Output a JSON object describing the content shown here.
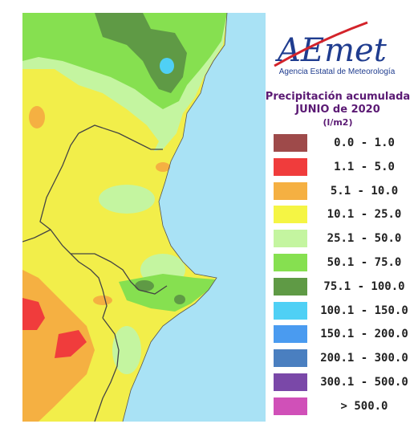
{
  "logo": {
    "wordmark": "AEmet",
    "subtitle": "Agencia Estatal de Meteorología"
  },
  "title": {
    "line1": "Precipitación acumulada",
    "line2": "JUNIO de 2020",
    "units": "(l/m2)"
  },
  "legend": [
    {
      "label": "0.0 - 1.0",
      "color": "#9e4a4a"
    },
    {
      "label": "1.1 - 5.0",
      "color": "#f03c3c"
    },
    {
      "label": "5.1 - 10.0",
      "color": "#f5b042"
    },
    {
      "label": "10.1 - 25.0",
      "color": "#f5f544"
    },
    {
      "label": "25.1 - 50.0",
      "color": "#c4f5a0"
    },
    {
      "label": "50.1 - 75.0",
      "color": "#86e050"
    },
    {
      "label": "75.1 - 100.0",
      "color": "#5f9a45"
    },
    {
      "label": "100.1 - 150.0",
      "color": "#4fd0f5"
    },
    {
      "label": "150.1 - 200.0",
      "color": "#4a9bf0"
    },
    {
      "label": "200.1 - 300.0",
      "color": "#4a7fc0"
    },
    {
      "label": "300.1 - 500.0",
      "color": "#7a48a8"
    },
    {
      "label": "> 500.0",
      "color": "#d050b8"
    }
  ],
  "map": {
    "sea_color": "#a9e2f5",
    "land_base": "#f2ee4a",
    "border_color": "#444444"
  }
}
